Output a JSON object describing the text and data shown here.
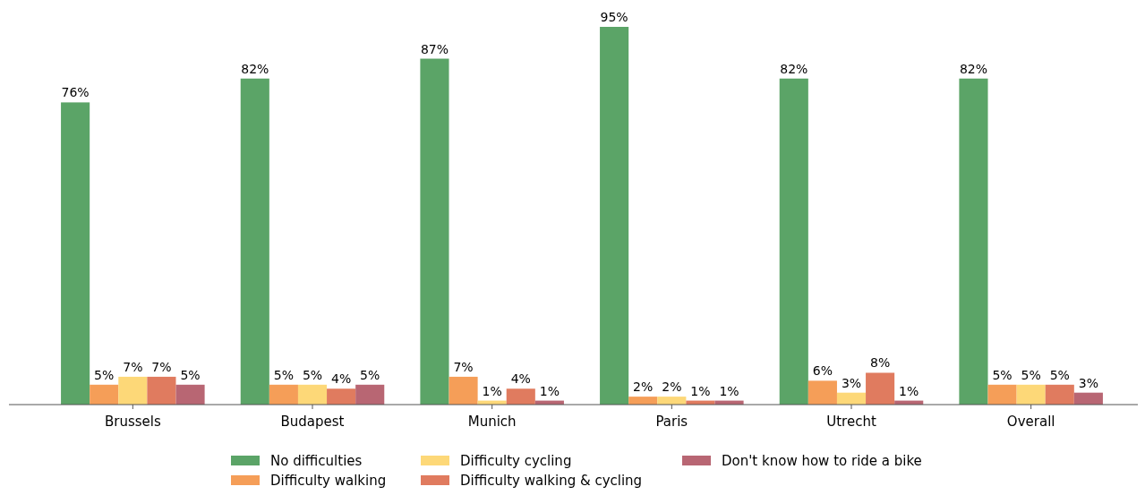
{
  "chart_data": {
    "type": "bar",
    "categories": [
      "Brussels",
      "Budapest",
      "Munich",
      "Paris",
      "Utrecht",
      "Overall"
    ],
    "series": [
      {
        "name": "No difficulties",
        "color": "#5ba467",
        "values": [
          76,
          82,
          87,
          95,
          82,
          82
        ],
        "value_labels": [
          "76%",
          "82%",
          "87%",
          "95%",
          "82%",
          "82%"
        ]
      },
      {
        "name": "Difficulty walking",
        "color": "#f59e58",
        "values": [
          5,
          5,
          7,
          2,
          6,
          5
        ],
        "value_labels": [
          "5%",
          "5%",
          "7%",
          "2%",
          "6%",
          "5%"
        ]
      },
      {
        "name": "Difficulty cycling",
        "color": "#fdd878",
        "values": [
          7,
          5,
          1,
          2,
          3,
          5
        ],
        "value_labels": [
          "7%",
          "5%",
          "1%",
          "2%",
          "3%",
          "5%"
        ]
      },
      {
        "name": "Difficulty walking & cycling",
        "color": "#e07b5f",
        "values": [
          7,
          4,
          4,
          1,
          8,
          5
        ],
        "value_labels": [
          "7%",
          "4%",
          "4%",
          "1%",
          "8%",
          "5%"
        ]
      },
      {
        "name": "Don't know how to ride a bike",
        "color": "#b86673",
        "values": [
          5,
          5,
          1,
          1,
          1,
          3
        ],
        "value_labels": [
          "5%",
          "5%",
          "1%",
          "1%",
          "1%",
          "3%"
        ]
      }
    ],
    "legend": "bottom",
    "grid": false
  }
}
